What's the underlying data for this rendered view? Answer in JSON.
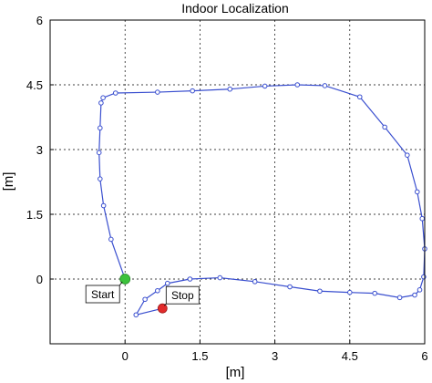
{
  "chart_data": {
    "type": "line",
    "title": "Indoor Localization",
    "xlabel": "[m]",
    "ylabel": "[m]",
    "xlim": [
      -1.5,
      6
    ],
    "ylim": [
      -1.5,
      6
    ],
    "xticks": [
      0,
      1.5,
      3,
      4.5,
      6
    ],
    "yticks": [
      0,
      1.5,
      3,
      4.5,
      6
    ],
    "xtick_labels": [
      "0",
      "1.5",
      "3",
      "4.5",
      "6"
    ],
    "ytick_labels": [
      "0",
      "1.5",
      "3",
      "4.5",
      "6"
    ],
    "grid": true,
    "line_color": "#3a4fcf",
    "series": [
      {
        "x": [
          0,
          -0.28,
          -0.43,
          -0.5,
          -0.52,
          -0.5,
          -0.48,
          -0.44,
          -0.19,
          0.65,
          1.35,
          2.1,
          2.8,
          3.45,
          4.0,
          4.7,
          5.2,
          5.65,
          5.85,
          5.95,
          6.0,
          5.98,
          5.9,
          5.8,
          5.5,
          5.0,
          4.5,
          3.9,
          3.3,
          2.6,
          1.9,
          1.3,
          0.85,
          0.65,
          0.4,
          0.22,
          0.75
        ],
        "y": [
          0,
          0.92,
          1.7,
          2.32,
          2.93,
          3.5,
          4.08,
          4.2,
          4.31,
          4.33,
          4.36,
          4.4,
          4.47,
          4.5,
          4.48,
          4.22,
          3.52,
          2.87,
          2.02,
          1.4,
          0.7,
          0.05,
          -0.25,
          -0.37,
          -0.43,
          -0.33,
          -0.31,
          -0.28,
          -0.18,
          -0.06,
          0.03,
          0.0,
          -0.1,
          -0.27,
          -0.47,
          -0.83,
          -0.68
        ],
        "start_index": 0,
        "stop_index": 36
      }
    ],
    "annotations": [
      {
        "label": "Start",
        "color": "#3bc23b"
      },
      {
        "label": "Stop",
        "color": "#e22b2b"
      }
    ]
  }
}
